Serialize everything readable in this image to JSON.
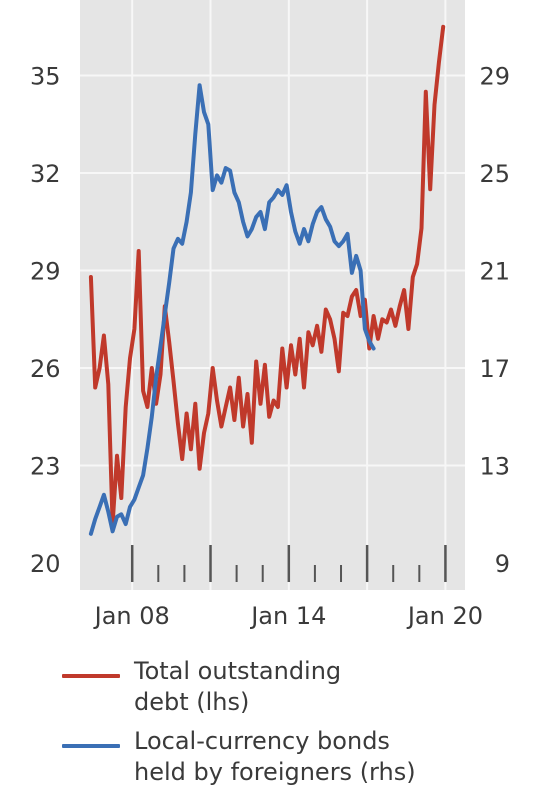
{
  "chart_data": {
    "type": "line",
    "x_range": [
      "2006-01",
      "2020-10"
    ],
    "x_ticks": [
      "Jan 08",
      "Jan 14",
      "Jan 20"
    ],
    "grid": true,
    "colors": {
      "total_debt": "#c0392b",
      "bonds": "#3a6fb5",
      "background": "#e5e5e5",
      "grid": "#f7f7f7",
      "axis": "#555555"
    },
    "axes": {
      "left": {
        "unit": "",
        "ylim": [
          20,
          37
        ],
        "ticks": [
          20,
          23,
          26,
          29,
          32,
          35
        ]
      },
      "right": {
        "unit": "",
        "ylim": [
          9,
          32
        ],
        "ticks": [
          9,
          13,
          17,
          21,
          25,
          29
        ]
      }
    },
    "series": [
      {
        "name": "Total outstanding debt (lhs)",
        "axis": "left",
        "color": "#c0392b",
        "points": [
          [
            "2006-06",
            28.8
          ],
          [
            "2006-08",
            25.4
          ],
          [
            "2006-10",
            26.0
          ],
          [
            "2006-12",
            27.0
          ],
          [
            "2007-02",
            25.5
          ],
          [
            "2007-04",
            21.2
          ],
          [
            "2007-06",
            23.3
          ],
          [
            "2007-08",
            22.0
          ],
          [
            "2007-10",
            24.8
          ],
          [
            "2007-12",
            26.3
          ],
          [
            "2008-02",
            27.2
          ],
          [
            "2008-04",
            29.6
          ],
          [
            "2008-06",
            25.3
          ],
          [
            "2008-08",
            24.8
          ],
          [
            "2008-10",
            26.0
          ],
          [
            "2008-12",
            24.9
          ],
          [
            "2009-02",
            25.8
          ],
          [
            "2009-04",
            27.9
          ],
          [
            "2009-06",
            26.8
          ],
          [
            "2009-08",
            25.6
          ],
          [
            "2009-10",
            24.3
          ],
          [
            "2009-12",
            23.2
          ],
          [
            "2010-02",
            24.6
          ],
          [
            "2010-04",
            23.5
          ],
          [
            "2010-06",
            24.9
          ],
          [
            "2010-08",
            22.9
          ],
          [
            "2010-10",
            24.0
          ],
          [
            "2010-12",
            24.6
          ],
          [
            "2011-02",
            26.0
          ],
          [
            "2011-04",
            25.0
          ],
          [
            "2011-06",
            24.2
          ],
          [
            "2011-08",
            24.8
          ],
          [
            "2011-10",
            25.4
          ],
          [
            "2011-12",
            24.4
          ],
          [
            "2012-02",
            25.7
          ],
          [
            "2012-04",
            24.2
          ],
          [
            "2012-06",
            25.2
          ],
          [
            "2012-08",
            23.7
          ],
          [
            "2012-10",
            26.2
          ],
          [
            "2012-12",
            24.9
          ],
          [
            "2013-02",
            26.1
          ],
          [
            "2013-04",
            24.5
          ],
          [
            "2013-06",
            25.0
          ],
          [
            "2013-08",
            24.8
          ],
          [
            "2013-10",
            26.6
          ],
          [
            "2013-12",
            25.4
          ],
          [
            "2014-02",
            26.7
          ],
          [
            "2014-04",
            25.8
          ],
          [
            "2014-06",
            26.9
          ],
          [
            "2014-08",
            25.4
          ],
          [
            "2014-10",
            27.1
          ],
          [
            "2014-12",
            26.7
          ],
          [
            "2015-02",
            27.3
          ],
          [
            "2015-04",
            26.5
          ],
          [
            "2015-06",
            27.8
          ],
          [
            "2015-08",
            27.5
          ],
          [
            "2015-10",
            26.9
          ],
          [
            "2015-12",
            25.9
          ],
          [
            "2016-02",
            27.7
          ],
          [
            "2016-04",
            27.6
          ],
          [
            "2016-06",
            28.2
          ],
          [
            "2016-08",
            28.4
          ],
          [
            "2016-10",
            27.6
          ],
          [
            "2016-12",
            28.1
          ],
          [
            "2017-02",
            26.6
          ],
          [
            "2017-04",
            27.6
          ],
          [
            "2017-06",
            26.9
          ],
          [
            "2017-08",
            27.5
          ],
          [
            "2017-10",
            27.4
          ],
          [
            "2017-12",
            27.8
          ],
          [
            "2018-02",
            27.3
          ],
          [
            "2018-04",
            27.9
          ],
          [
            "2018-06",
            28.4
          ],
          [
            "2018-08",
            27.2
          ],
          [
            "2018-10",
            28.8
          ],
          [
            "2018-12",
            29.2
          ],
          [
            "2019-02",
            30.3
          ],
          [
            "2019-04",
            34.5
          ],
          [
            "2019-06",
            31.5
          ],
          [
            "2019-08",
            34.1
          ],
          [
            "2019-10",
            35.4
          ],
          [
            "2019-12",
            36.5
          ]
        ]
      },
      {
        "name": "Local-currency bonds held by foreigners (rhs)",
        "axis": "right",
        "color": "#3a6fb5",
        "points": [
          [
            "2006-06",
            10.2
          ],
          [
            "2006-08",
            10.8
          ],
          [
            "2006-10",
            11.3
          ],
          [
            "2006-12",
            11.8
          ],
          [
            "2007-02",
            11.1
          ],
          [
            "2007-04",
            10.3
          ],
          [
            "2007-06",
            10.9
          ],
          [
            "2007-08",
            11.0
          ],
          [
            "2007-10",
            10.6
          ],
          [
            "2007-12",
            11.3
          ],
          [
            "2008-02",
            11.6
          ],
          [
            "2008-04",
            12.1
          ],
          [
            "2008-06",
            12.6
          ],
          [
            "2008-08",
            13.7
          ],
          [
            "2008-10",
            15.0
          ],
          [
            "2008-12",
            16.6
          ],
          [
            "2009-02",
            17.9
          ],
          [
            "2009-04",
            19.2
          ],
          [
            "2009-06",
            20.5
          ],
          [
            "2009-08",
            21.9
          ],
          [
            "2009-10",
            22.3
          ],
          [
            "2009-12",
            22.1
          ],
          [
            "2010-02",
            23.0
          ],
          [
            "2010-04",
            24.2
          ],
          [
            "2010-06",
            26.6
          ],
          [
            "2010-08",
            28.6
          ],
          [
            "2010-10",
            27.5
          ],
          [
            "2010-12",
            27.0
          ],
          [
            "2011-02",
            24.3
          ],
          [
            "2011-04",
            24.9
          ],
          [
            "2011-06",
            24.6
          ],
          [
            "2011-08",
            25.2
          ],
          [
            "2011-10",
            25.1
          ],
          [
            "2011-12",
            24.2
          ],
          [
            "2012-02",
            23.8
          ],
          [
            "2012-04",
            23.0
          ],
          [
            "2012-06",
            22.4
          ],
          [
            "2012-08",
            22.7
          ],
          [
            "2012-10",
            23.2
          ],
          [
            "2012-12",
            23.4
          ],
          [
            "2013-02",
            22.7
          ],
          [
            "2013-04",
            23.8
          ],
          [
            "2013-06",
            24.0
          ],
          [
            "2013-08",
            24.3
          ],
          [
            "2013-10",
            24.1
          ],
          [
            "2013-12",
            24.5
          ],
          [
            "2014-02",
            23.4
          ],
          [
            "2014-04",
            22.6
          ],
          [
            "2014-06",
            22.1
          ],
          [
            "2014-08",
            22.7
          ],
          [
            "2014-10",
            22.2
          ],
          [
            "2014-12",
            22.9
          ],
          [
            "2015-02",
            23.4
          ],
          [
            "2015-04",
            23.6
          ],
          [
            "2015-06",
            23.1
          ],
          [
            "2015-08",
            22.8
          ],
          [
            "2015-10",
            22.2
          ],
          [
            "2015-12",
            22.0
          ],
          [
            "2016-02",
            22.2
          ],
          [
            "2016-04",
            22.5
          ],
          [
            "2016-06",
            20.9
          ],
          [
            "2016-08",
            21.6
          ],
          [
            "2016-10",
            21.0
          ],
          [
            "2016-12",
            18.6
          ],
          [
            "2017-02",
            18.1
          ],
          [
            "2017-04",
            17.8
          ]
        ]
      }
    ]
  },
  "legend": {
    "debt_label": "Total outstanding\ndebt (lhs)",
    "bonds_label": "Local-currency bonds\nheld by foreigners (rhs)"
  }
}
